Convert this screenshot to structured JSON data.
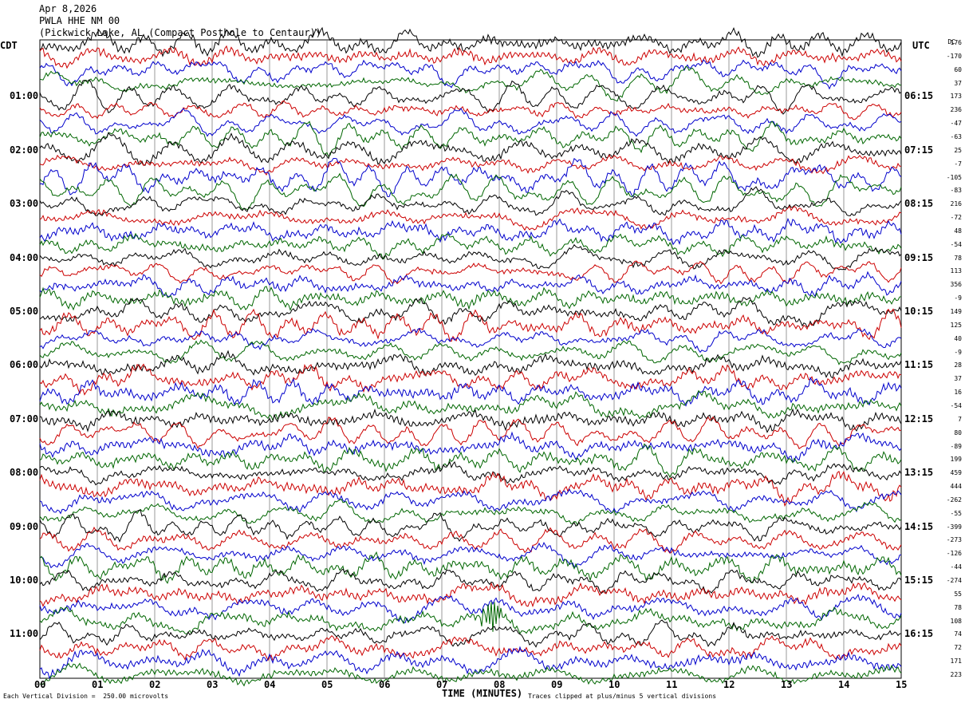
{
  "header": {
    "date": "Apr 8,2026",
    "station": "PWLA HHE NM 00",
    "location": "(Pickwick Lake, AL (Compact Posthole to Centaur))"
  },
  "left_zone": "CDT",
  "right_zone": "UTC",
  "dc_label": "DC",
  "footer": {
    "scale_note": "Each Vertical Division =  250.00 microvolts",
    "clip_note": "Traces clipped at plus/minus 5 vertical divisions",
    "xlabel": "TIME (MINUTES)"
  },
  "colors": {
    "trace_cycle": [
      "#000000",
      "#cc0000",
      "#0000cc",
      "#006600"
    ],
    "grid": "#808080"
  },
  "chart_data": {
    "type": "line",
    "title": "PWLA HHE NM 00",
    "xlabel": "TIME (MINUTES)",
    "xlim": [
      0,
      15
    ],
    "x_ticks": [
      "00",
      "01",
      "02",
      "03",
      "04",
      "05",
      "06",
      "07",
      "08",
      "09",
      "10",
      "11",
      "12",
      "13",
      "14",
      "15"
    ],
    "left_time_labels": [
      "01:00",
      "02:00",
      "03:00",
      "04:00",
      "05:00",
      "06:00",
      "07:00",
      "08:00",
      "09:00",
      "10:00",
      "11:00"
    ],
    "right_time_labels": [
      "UTC",
      "06:15",
      "07:15",
      "08:15",
      "09:15",
      "10:15",
      "11:15",
      "12:15",
      "13:15",
      "14:15",
      "15:15",
      "16:15"
    ],
    "trace_count": 48,
    "trace_minutes": 15,
    "dc_offsets": [
      "176",
      "-170",
      "60",
      "37",
      "173",
      "236",
      "-47",
      "-63",
      "25",
      "-7",
      "-105",
      "-83",
      "216",
      "-72",
      "48",
      "-54",
      "78",
      "113",
      "356",
      "-9",
      "149",
      "125",
      "40",
      "-9",
      "28",
      "37",
      "16",
      "-54",
      "7",
      "80",
      "-89",
      "199",
      "459",
      "444",
      "-262",
      "-55",
      "-399",
      "-273",
      "-126",
      "-44",
      "-274",
      "55",
      "78",
      "108",
      "74",
      "72",
      "171",
      "223"
    ],
    "events": [
      {
        "trace_index": 43,
        "minute": 7.8,
        "note": "local high-amplitude burst"
      }
    ]
  }
}
